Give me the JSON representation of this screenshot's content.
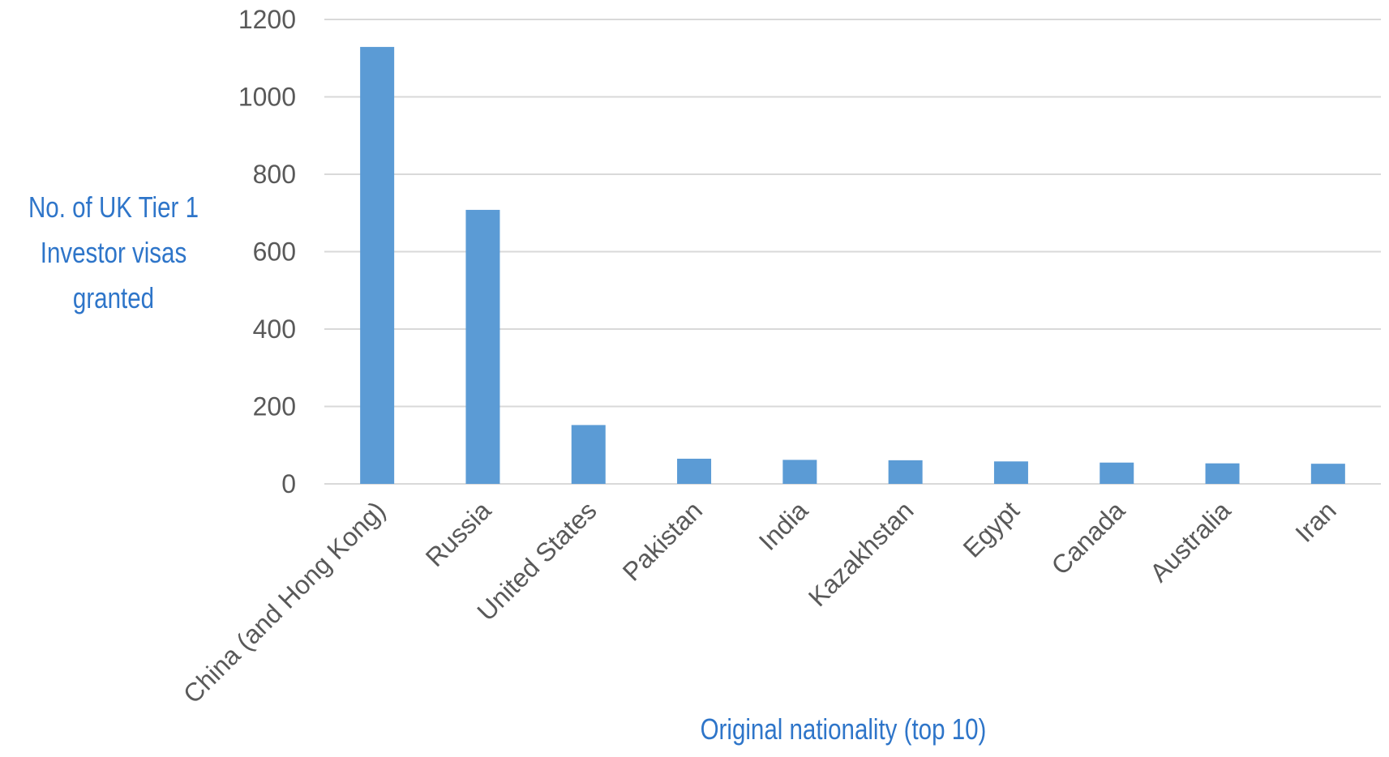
{
  "chart_data": {
    "type": "bar",
    "categories": [
      "China (and Hong Kong)",
      "Russia",
      "United States",
      "Pakistan",
      "India",
      "Kazakhstan",
      "Egypt",
      "Canada",
      "Australia",
      "Iran"
    ],
    "values": [
      1129,
      708,
      152,
      65,
      62,
      61,
      58,
      55,
      53,
      52
    ],
    "ylabel_lines": [
      "No. of UK Tier 1",
      "Investor visas",
      "granted"
    ],
    "xlabel": "Original nationality (top 10)",
    "yticks": [
      0,
      200,
      400,
      600,
      800,
      1000,
      1200
    ],
    "ylim": [
      0,
      1200
    ],
    "grid": true,
    "bar_color": "#5b9bd5",
    "label_color": "#2e75c9"
  }
}
